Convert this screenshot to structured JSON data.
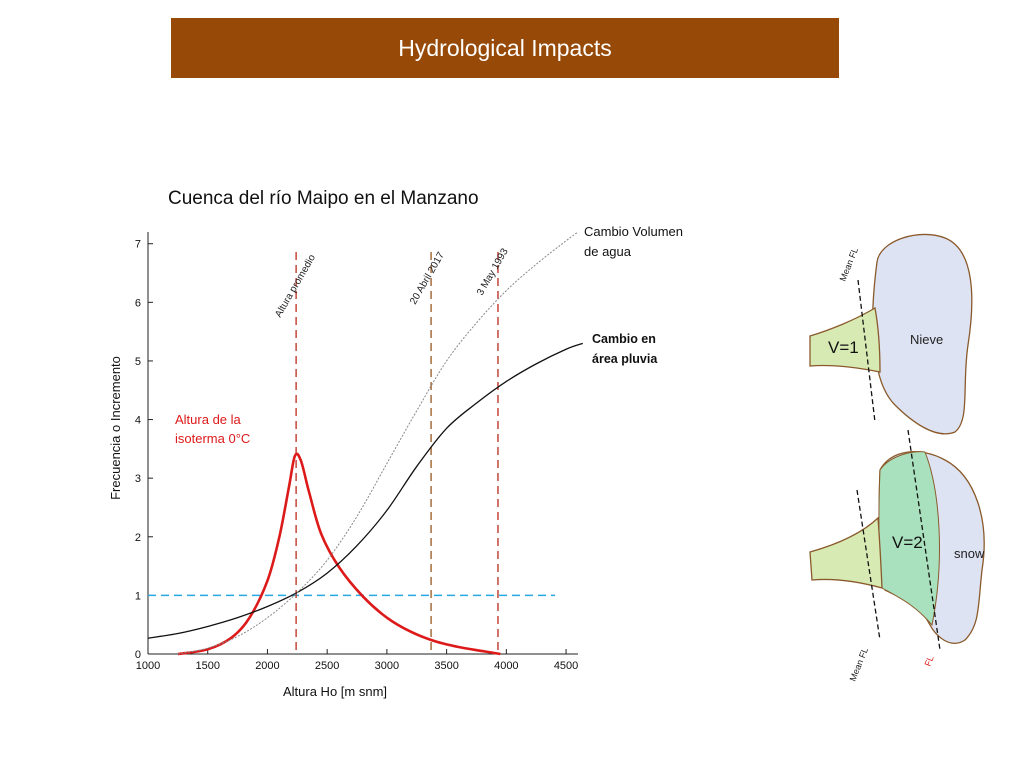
{
  "header": {
    "title": "Hydrological Impacts"
  },
  "chart_data": {
    "type": "line",
    "title": "Cuenca del río Maipo en el Manzano",
    "xlabel": "Altura Ho [m snm]",
    "ylabel": "Frecuencia o Incremento",
    "xlim": [
      1000,
      4600
    ],
    "ylim": [
      0,
      7.2
    ],
    "xticks": [
      1000,
      1500,
      2000,
      2500,
      3000,
      3500,
      4000,
      4500
    ],
    "yticks": [
      0,
      1,
      2,
      3,
      4,
      5,
      6,
      7
    ],
    "series": [
      {
        "name": "Altura de la isoterma 0°C",
        "color": "#dd1a1a",
        "x": [
          1250,
          1500,
          1700,
          1850,
          2000,
          2100,
          2180,
          2230,
          2280,
          2350,
          2450,
          2600,
          2800,
          3000,
          3200,
          3400,
          3600,
          3800,
          3950
        ],
        "y": [
          0.0,
          0.08,
          0.28,
          0.62,
          1.25,
          2.0,
          2.85,
          3.38,
          3.3,
          2.75,
          2.05,
          1.48,
          0.98,
          0.62,
          0.38,
          0.22,
          0.12,
          0.05,
          0.0
        ]
      },
      {
        "name": "Cambio en área pluvia",
        "color": "#111111",
        "x": [
          1000,
          1250,
          1500,
          1750,
          2000,
          2250,
          2500,
          2750,
          3000,
          3250,
          3500,
          3750,
          4000,
          4250,
          4500,
          4640
        ],
        "y": [
          0.27,
          0.35,
          0.47,
          0.62,
          0.81,
          1.05,
          1.38,
          1.85,
          2.45,
          3.2,
          3.85,
          4.28,
          4.65,
          4.95,
          5.2,
          5.3
        ]
      },
      {
        "name": "Cambio Volumen de agua",
        "color": "#888888",
        "x": [
          1250,
          1500,
          1750,
          2000,
          2250,
          2500,
          2750,
          3000,
          3250,
          3500,
          3750,
          4000,
          4250,
          4500,
          4600
        ],
        "y": [
          0.0,
          0.1,
          0.3,
          0.62,
          1.05,
          1.6,
          2.35,
          3.25,
          4.15,
          5.0,
          5.65,
          6.2,
          6.65,
          7.05,
          7.2
        ]
      }
    ],
    "reference_lines": [
      {
        "axis": "y",
        "value": 1,
        "color": "#29a9e1"
      },
      {
        "axis": "x",
        "value": 2240,
        "label": "Altura promedio",
        "color": "#c0392b"
      },
      {
        "axis": "x",
        "value": 3370,
        "label": "20 Abril 2017",
        "color": "#a0632e"
      },
      {
        "axis": "x",
        "value": 3930,
        "label": "3 May 1993",
        "color": "#c0392b"
      }
    ],
    "annotations": {
      "isoterma": [
        "Altura de la",
        "isoterma 0°C"
      ],
      "volumen": [
        "Cambio Volumen",
        "de agua"
      ],
      "pluvia": [
        "Cambio en",
        "área pluvia"
      ]
    }
  },
  "diagram": {
    "top": {
      "snow_label": "Nieve",
      "v_label": "V=1",
      "fl_label": "Mean FL"
    },
    "bottom": {
      "snow_label": "snow",
      "v_label": "V=2",
      "mean_fl_label": "Mean FL",
      "fl_label": "FL"
    },
    "colors": {
      "snow": "#dde3f3",
      "rain_light": "#d8eab3",
      "rain_dark": "#a9e0bd",
      "outline": "#8a5a2b"
    }
  }
}
